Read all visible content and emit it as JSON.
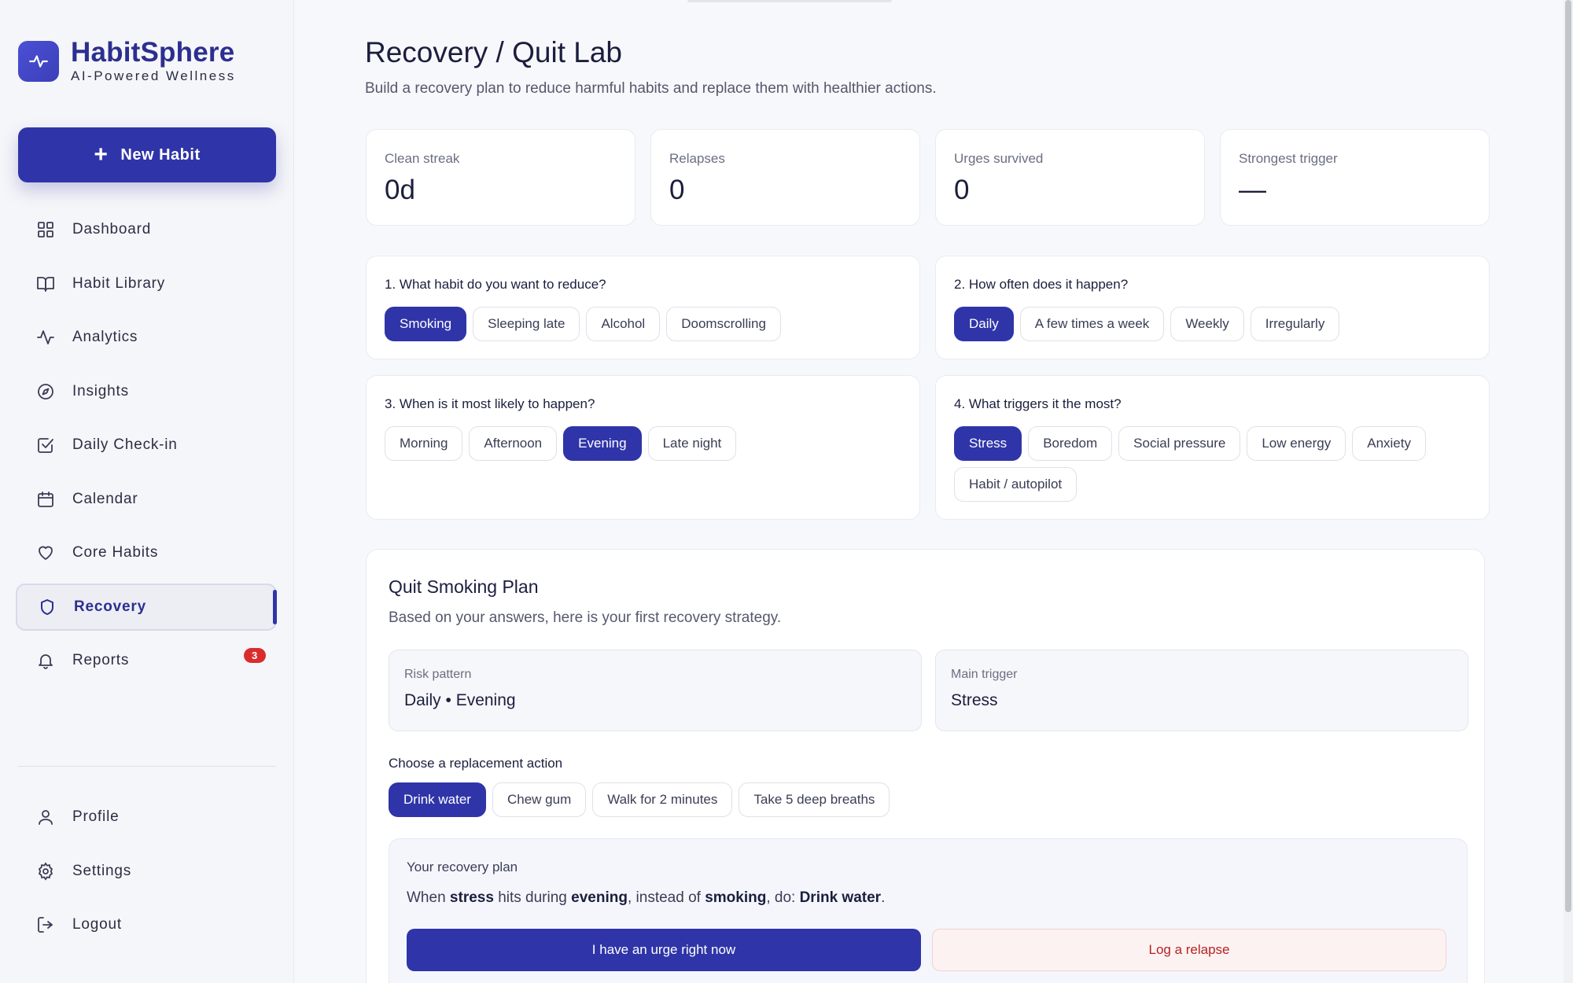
{
  "brand": {
    "name": "HabitSphere",
    "tagline": "AI-Powered Wellness"
  },
  "new_habit_label": "New Habit",
  "nav": [
    {
      "label": "Dashboard",
      "icon": "grid-icon"
    },
    {
      "label": "Habit Library",
      "icon": "book-icon"
    },
    {
      "label": "Analytics",
      "icon": "activity-icon"
    },
    {
      "label": "Insights",
      "icon": "compass-icon"
    },
    {
      "label": "Daily Check-in",
      "icon": "check-square-icon"
    },
    {
      "label": "Calendar",
      "icon": "calendar-icon"
    },
    {
      "label": "Core Habits",
      "icon": "heart-icon"
    },
    {
      "label": "Recovery",
      "icon": "shield-icon",
      "active": true
    },
    {
      "label": "Reports",
      "icon": "bell-icon",
      "badge": "3"
    }
  ],
  "nav_bottom": [
    {
      "label": "Profile",
      "icon": "user-icon"
    },
    {
      "label": "Settings",
      "icon": "gear-icon"
    },
    {
      "label": "Logout",
      "icon": "logout-icon"
    }
  ],
  "page": {
    "title": "Recovery / Quit Lab",
    "subtitle": "Build a recovery plan to reduce harmful habits and replace them with healthier actions."
  },
  "stats": [
    {
      "label": "Clean streak",
      "value": "0d"
    },
    {
      "label": "Relapses",
      "value": "0"
    },
    {
      "label": "Urges survived",
      "value": "0"
    },
    {
      "label": "Strongest trigger",
      "value": "—"
    }
  ],
  "questions": [
    {
      "title": "1. What habit do you want to reduce?",
      "options": [
        "Smoking",
        "Sleeping late",
        "Alcohol",
        "Doomscrolling"
      ],
      "selected": "Smoking"
    },
    {
      "title": "2. How often does it happen?",
      "options": [
        "Daily",
        "A few times a week",
        "Weekly",
        "Irregularly"
      ],
      "selected": "Daily"
    },
    {
      "title": "3. When is it most likely to happen?",
      "options": [
        "Morning",
        "Afternoon",
        "Evening",
        "Late night"
      ],
      "selected": "Evening"
    },
    {
      "title": "4. What triggers it the most?",
      "options": [
        "Stress",
        "Boredom",
        "Social pressure",
        "Low energy",
        "Anxiety",
        "Habit / autopilot"
      ],
      "selected": "Stress"
    }
  ],
  "plan": {
    "title": "Quit Smoking Plan",
    "subtitle": "Based on your answers, here is your first recovery strategy.",
    "risk_label": "Risk pattern",
    "risk_value": "Daily • Evening",
    "trigger_label": "Main trigger",
    "trigger_value": "Stress",
    "replacement_title": "Choose a replacement action",
    "replacements": [
      "Drink water",
      "Chew gum",
      "Walk for 2 minutes",
      "Take 5 deep breaths"
    ],
    "replacement_selected": "Drink water",
    "recovery_title": "Your recovery plan",
    "sentence": {
      "p1": "When ",
      "trigger": "stress",
      "p2": " hits during ",
      "time": "evening",
      "p3": ", instead of ",
      "habit": "smoking",
      "p4": ", do: ",
      "action": "Drink water",
      "p5": "."
    },
    "urge_button": "I have an urge right now",
    "relapse_button": "Log a relapse"
  },
  "colors": {
    "accent": "#2f35a8",
    "brand_text": "#2c2f8f",
    "badge": "#d92d2d",
    "relapse_text": "#b42323"
  }
}
